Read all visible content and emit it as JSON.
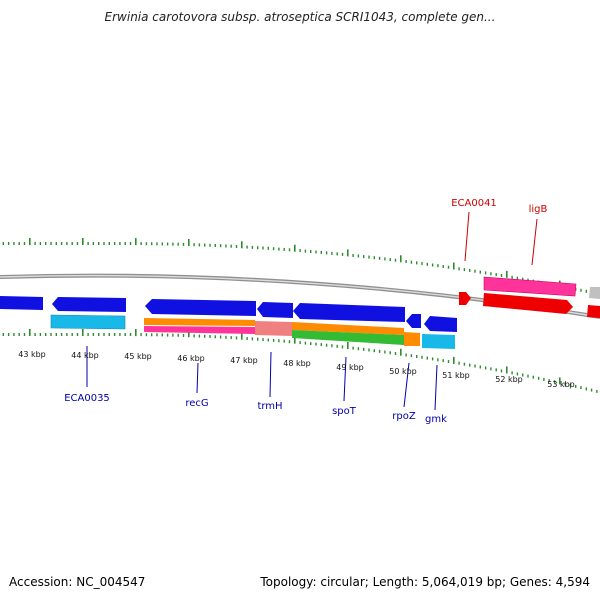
{
  "title": "Erwinia carotovora subsp. atroseptica SCRI1043, complete gen...",
  "footer": {
    "accession": "Accession: NC_004547",
    "summary": "Topology: circular; Length: 5,064,019 bp; Genes: 4,594"
  },
  "colors": {
    "backbone": "#888888",
    "tick": "#2e8b2e",
    "label_forward": "#cc0000",
    "label_reverse": "#0000aa",
    "blue": "#1010e0",
    "cyan": "#18b8e8",
    "orange": "#ff8c00",
    "pink": "#ff3399",
    "salmon": "#f08080",
    "green": "#33bb33",
    "red": "#ee0000",
    "gray": "#c0c0c0"
  },
  "scale_labels": [
    "43 kbp",
    "44 kbp",
    "45 kbp",
    "46 kbp",
    "47 kbp",
    "48 kbp",
    "49 kbp",
    "50 kbp",
    "51 kbp",
    "52 kbp",
    "53 kbp"
  ],
  "gene_labels": {
    "forward": [
      "ECA0041",
      "ligB"
    ],
    "reverse": [
      "ECA0035",
      "recG",
      "trmH",
      "spoT",
      "rpoZ",
      "gmk"
    ]
  }
}
